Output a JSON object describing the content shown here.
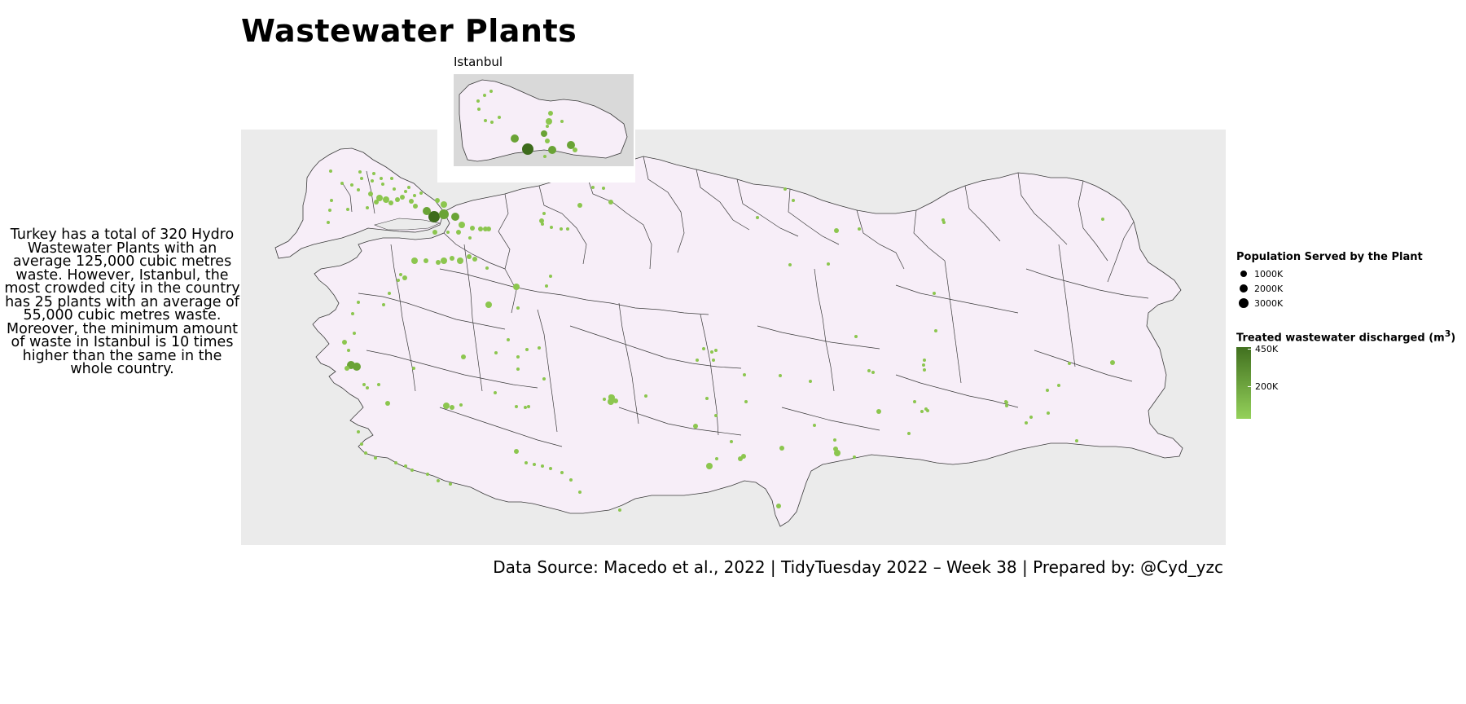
{
  "title": "Wastewater Plants",
  "inset_label": "Istanbul",
  "annotation": "Turkey has a total of 320 Hydro Wastewater Plants with an average 125,000 cubic metres waste. However, Istanbul, the most crowded city in the country has 25 plants with an average of 55,000 cubic metres waste. Moreover, the minimum amount of waste in Istanbul is 10 times higher than the same in the whole country.",
  "caption": "Data Source: Macedo et al., 2022 | TidyTuesday 2022 – Week 38 | Prepared by: @Cyd_yzc",
  "legend": {
    "size_title": "Population Served by the Plant",
    "size_items": [
      {
        "label": "1000K",
        "value": 1000
      },
      {
        "label": "2000K",
        "value": 2000
      },
      {
        "label": "3000K",
        "value": 3000
      }
    ],
    "color_title": "Treated wastewater discharged (m",
    "color_title_sup": "3",
    "color_title_end": ")",
    "color_ticks": [
      "450K",
      "200K"
    ],
    "color_low": "#94d15a",
    "color_high": "#41701f"
  },
  "colors": {
    "province_fill": "#f7eef8",
    "panel_bg": "#ebebeb",
    "inset_bg": "#d9d9d9",
    "point": "#8cc64f"
  }
}
